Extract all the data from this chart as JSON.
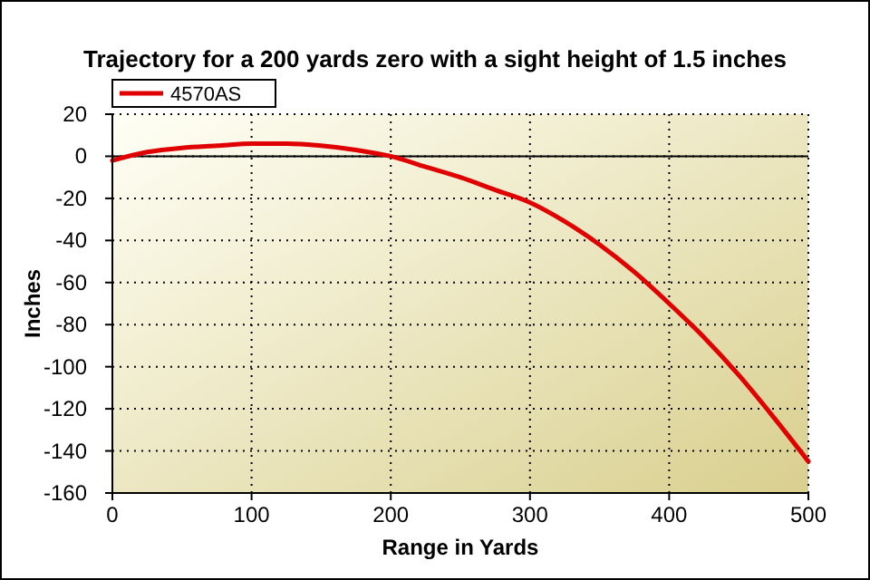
{
  "chart_data": {
    "type": "line",
    "title": "Trajectory for a 200 yards zero with a sight height of 1.5 inches",
    "xlabel": "Range in Yards",
    "ylabel": "Inches",
    "series": [
      {
        "name": "4570AS",
        "color": "#e00000",
        "x": [
          0,
          25,
          50,
          75,
          100,
          125,
          150,
          175,
          200,
          225,
          250,
          275,
          300,
          325,
          350,
          375,
          400,
          425,
          450,
          475,
          500
        ],
        "values": [
          -2,
          2,
          4,
          5,
          6,
          6,
          5,
          3,
          0,
          -5,
          -10,
          -16,
          -22,
          -31,
          -42,
          -55,
          -70,
          -86,
          -104,
          -124,
          -145
        ]
      }
    ],
    "xlim": [
      0,
      500
    ],
    "xticks": [
      0,
      100,
      200,
      300,
      400,
      500
    ],
    "ylim": [
      -160,
      20
    ],
    "yticks": [
      -160,
      -140,
      -120,
      -100,
      -80,
      -60,
      -40,
      -20,
      0,
      20
    ],
    "grid": true,
    "legend": "top left",
    "ref_lines": [
      {
        "axis": "y",
        "value": 0,
        "color": "#000000"
      }
    ]
  }
}
